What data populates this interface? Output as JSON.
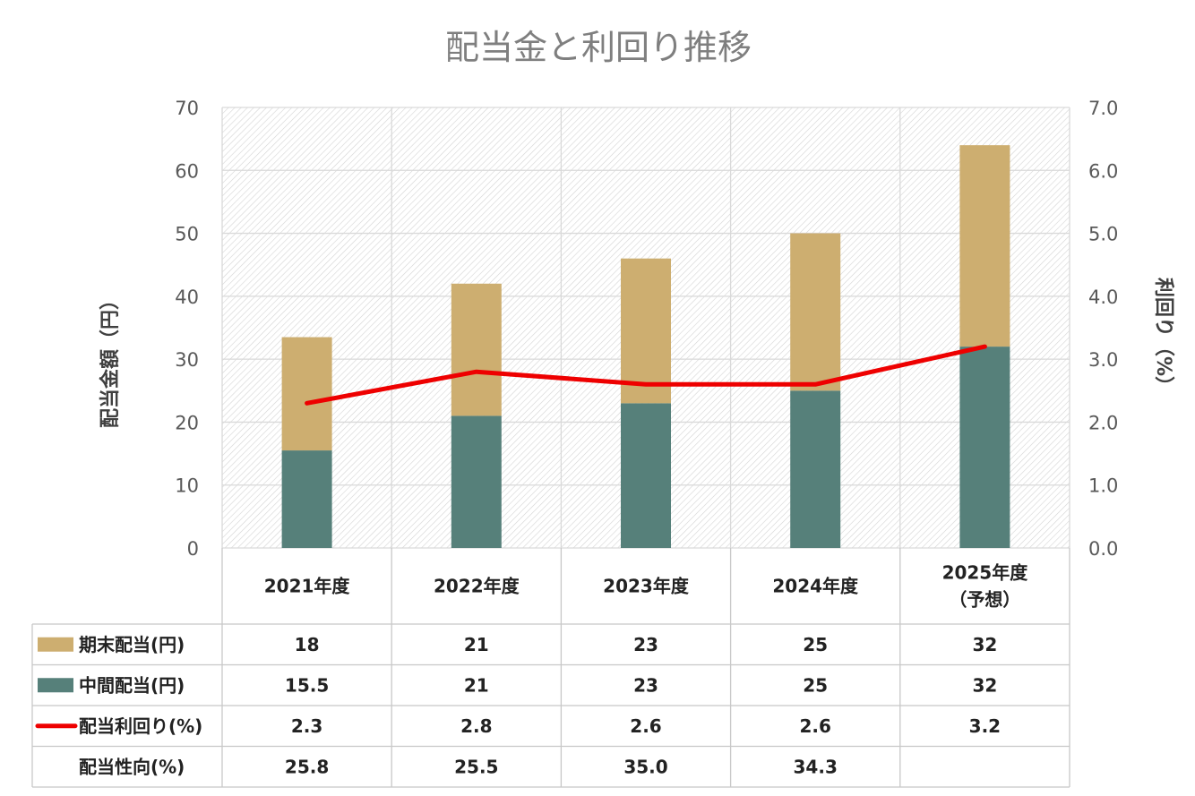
{
  "chart_data": {
    "type": "bar",
    "title": "配当金と利回り推移",
    "ylabel": "配当金額（円）",
    "y2label": "利回り（%）",
    "ylim": [
      0,
      70
    ],
    "y2lim": [
      0,
      7
    ],
    "yticks": [
      "0",
      "10",
      "20",
      "30",
      "40",
      "50",
      "60",
      "70"
    ],
    "y2ticks": [
      "0.0",
      "1.0",
      "2.0",
      "3.0",
      "4.0",
      "5.0",
      "6.0",
      "7.0"
    ],
    "grid": true,
    "categories": [
      [
        "2021年度"
      ],
      [
        "2022年度"
      ],
      [
        "2023年度"
      ],
      [
        "2024年度"
      ],
      [
        "2025年度",
        "（予想）"
      ]
    ],
    "series": [
      {
        "name": "中間配当(円)",
        "kind": "bar",
        "stack": "dividend",
        "color": "#56807a",
        "values": [
          15.5,
          21,
          23,
          25,
          32
        ],
        "labels": [
          "15.5",
          "21",
          "23",
          "25",
          "32"
        ]
      },
      {
        "name": "期末配当(円)",
        "kind": "bar",
        "stack": "dividend",
        "color": "#cdae70",
        "values": [
          18,
          21,
          23,
          25,
          32
        ],
        "labels": [
          "18",
          "21",
          "23",
          "25",
          "32"
        ]
      },
      {
        "name": "配当利回り(%)",
        "kind": "line",
        "axis": "right",
        "color": "#ee0000",
        "values": [
          2.3,
          2.8,
          2.6,
          2.6,
          3.2
        ],
        "labels": [
          "2.3",
          "2.8",
          "2.6",
          "2.6",
          "3.2"
        ]
      }
    ],
    "table_rows": [
      {
        "label": "期末配当(円)",
        "series": 1,
        "key": "ki",
        "cells": [
          "18",
          "21",
          "23",
          "25",
          "32"
        ]
      },
      {
        "label": "中間配当(円)",
        "series": 0,
        "key": "chu",
        "cells": [
          "15.5",
          "21",
          "23",
          "25",
          "32"
        ]
      },
      {
        "label": "配当利回り(%)",
        "series": 2,
        "key": "yield",
        "cells": [
          "2.3",
          "2.8",
          "2.6",
          "2.6",
          "3.2"
        ]
      },
      {
        "label": "配当性向(%)",
        "series": null,
        "key": "payout",
        "cells": [
          "25.8",
          "25.5",
          "35.0",
          "34.3",
          ""
        ]
      }
    ]
  }
}
